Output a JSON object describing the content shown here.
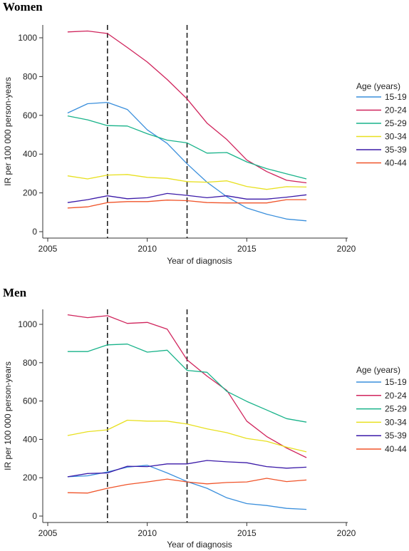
{
  "chart_data": [
    {
      "type": "line",
      "title": "Women",
      "xlabel": "Year of diagnosis",
      "ylabel": "IR per 100 000 person-years",
      "xlim": [
        2005,
        2020
      ],
      "ylim": [
        0,
        1000
      ],
      "x_ticks": [
        "2005",
        "2010",
        "2015",
        "2020"
      ],
      "y_ticks": [
        "0",
        "200",
        "400",
        "600",
        "800",
        "1000"
      ],
      "grid": false,
      "reference_lines_x": [
        2008,
        2012
      ],
      "legend_title": "Age (years)",
      "legend_position": "right",
      "x": [
        2006,
        2007,
        2008,
        2009,
        2010,
        2011,
        2012,
        2013,
        2014,
        2015,
        2016,
        2017,
        2018
      ],
      "series": [
        {
          "name": "15-19",
          "color": "#3a8fdc",
          "values": [
            612,
            660,
            667,
            630,
            525,
            455,
            350,
            255,
            180,
            122,
            90,
            65,
            56
          ]
        },
        {
          "name": "20-24",
          "color": "#d0245c",
          "values": [
            1030,
            1035,
            1022,
            950,
            875,
            785,
            685,
            560,
            475,
            370,
            310,
            265,
            252
          ]
        },
        {
          "name": "25-29",
          "color": "#19b38a",
          "values": [
            597,
            577,
            547,
            545,
            505,
            472,
            458,
            405,
            408,
            360,
            325,
            298,
            272
          ]
        },
        {
          "name": "30-34",
          "color": "#e8e020",
          "values": [
            288,
            272,
            292,
            295,
            280,
            275,
            258,
            255,
            262,
            233,
            218,
            232,
            230
          ]
        },
        {
          "name": "35-39",
          "color": "#3b1aa8",
          "values": [
            150,
            165,
            185,
            170,
            175,
            197,
            187,
            175,
            185,
            168,
            168,
            178,
            190
          ]
        },
        {
          "name": "40-44",
          "color": "#f0542a",
          "values": [
            122,
            128,
            150,
            155,
            155,
            163,
            160,
            150,
            148,
            148,
            148,
            165,
            165
          ]
        }
      ]
    },
    {
      "type": "line",
      "title": "Men",
      "xlabel": "Year of diagnosis",
      "ylabel": "IR per 100 000 person-years",
      "xlim": [
        2005,
        2020
      ],
      "ylim": [
        0,
        1000
      ],
      "x_ticks": [
        "2005",
        "2010",
        "2015",
        "2020"
      ],
      "y_ticks": [
        "0",
        "200",
        "400",
        "600",
        "800",
        "1000"
      ],
      "grid": false,
      "reference_lines_x": [
        2008,
        2012
      ],
      "legend_title": "Age (years)",
      "legend_position": "right",
      "x": [
        2006,
        2007,
        2008,
        2009,
        2010,
        2011,
        2012,
        2013,
        2014,
        2015,
        2016,
        2017,
        2018
      ],
      "series": [
        {
          "name": "15-19",
          "color": "#3a8fdc",
          "values": [
            205,
            210,
            230,
            255,
            265,
            225,
            180,
            145,
            95,
            65,
            55,
            40,
            35
          ]
        },
        {
          "name": "20-24",
          "color": "#d0245c",
          "values": [
            1050,
            1035,
            1045,
            1005,
            1010,
            975,
            815,
            730,
            655,
            495,
            415,
            355,
            305
          ]
        },
        {
          "name": "25-29",
          "color": "#19b38a",
          "values": [
            858,
            858,
            893,
            897,
            855,
            865,
            760,
            750,
            650,
            598,
            553,
            508,
            490
          ]
        },
        {
          "name": "30-34",
          "color": "#e8e020",
          "values": [
            420,
            440,
            450,
            500,
            495,
            495,
            480,
            455,
            435,
            405,
            390,
            360,
            335
          ]
        },
        {
          "name": "35-39",
          "color": "#3b1aa8",
          "values": [
            205,
            222,
            225,
            260,
            258,
            272,
            272,
            290,
            283,
            278,
            258,
            250,
            255
          ]
        },
        {
          "name": "40-44",
          "color": "#f0542a",
          "values": [
            122,
            120,
            145,
            165,
            178,
            193,
            178,
            168,
            175,
            178,
            197,
            180,
            188
          ]
        }
      ]
    }
  ]
}
